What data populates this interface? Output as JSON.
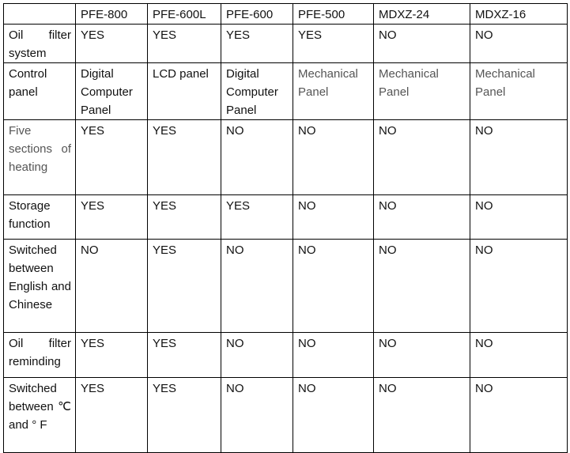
{
  "table": {
    "columns": [
      "PFE-800",
      "PFE-600L",
      "PFE-600",
      "PFE-500",
      "MDXZ-24",
      "MDXZ-16"
    ],
    "rows": [
      {
        "label": "Oil filter system",
        "cells": [
          "YES",
          "YES",
          "YES",
          "YES",
          "NO",
          "NO"
        ]
      },
      {
        "label": "Control panel",
        "cells": [
          "Digital Computer Panel",
          "LCD panel",
          "Digital Computer Panel",
          "Mechanical Panel",
          "Mechanical Panel",
          "Mechanical Panel"
        ]
      },
      {
        "label": "Five sections of heating",
        "cells": [
          "YES",
          "YES",
          "NO",
          "NO",
          "NO",
          "NO"
        ]
      },
      {
        "label": "Storage function",
        "cells": [
          "YES",
          "YES",
          "YES",
          "NO",
          "NO",
          "NO"
        ]
      },
      {
        "label": "Switched between English and Chinese",
        "cells": [
          "NO",
          "YES",
          "NO",
          "NO",
          "NO",
          "NO"
        ]
      },
      {
        "label": "Oil filter reminding",
        "cells": [
          "YES",
          "YES",
          "NO",
          "NO",
          "NO",
          "NO"
        ]
      },
      {
        "label": "Switched between ℃ and ° F",
        "cells": [
          "YES",
          "YES",
          "NO",
          "NO",
          "NO",
          "NO"
        ]
      }
    ]
  }
}
